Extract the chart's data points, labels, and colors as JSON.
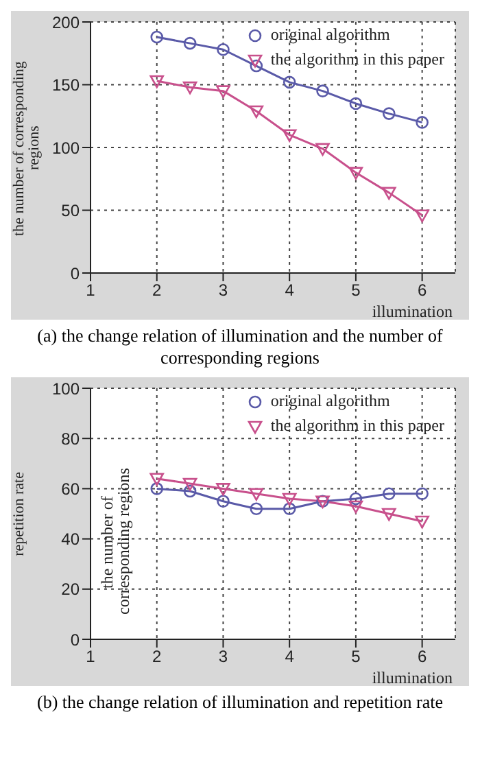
{
  "chart_data": [
    {
      "type": "line",
      "title": "(a) the change relation of illumination and the number of corresponding regions",
      "xlabel": "illumination",
      "ylabel": "the number of corresponding regions",
      "x": [
        2,
        2.5,
        3,
        3.5,
        4,
        4.5,
        5,
        5.5,
        6
      ],
      "series": [
        {
          "name": "original algorithm",
          "color": "#5a5aa8",
          "marker": "circle",
          "values": [
            188,
            183,
            178,
            165,
            152,
            145,
            135,
            127,
            120
          ]
        },
        {
          "name": "the algorithm in this paper",
          "color": "#c8508c",
          "marker": "triangle",
          "values": [
            153,
            148,
            145,
            129,
            110,
            99,
            80,
            64,
            46
          ]
        }
      ],
      "xlim": [
        1,
        6.5
      ],
      "xticks": [
        1,
        2,
        3,
        4,
        5,
        6
      ],
      "ylim": [
        0,
        200
      ],
      "yticks": [
        0,
        50,
        100,
        150,
        200
      ],
      "grid": true,
      "legend": "top right",
      "line_style": "solid"
    },
    {
      "type": "line",
      "title": "(b) the change relation of illumination and repetition rate",
      "xlabel": "illumination",
      "ylabel": "repetition rate",
      "annotations": [
        "the number of corresponding regions"
      ],
      "x": [
        2,
        2.5,
        3,
        3.5,
        4,
        4.5,
        5,
        5.5,
        6
      ],
      "series": [
        {
          "name": "original algorithm",
          "color": "#5a5aa8",
          "marker": "circle",
          "values": [
            60,
            59,
            55,
            52,
            52,
            55,
            56,
            58,
            58
          ]
        },
        {
          "name": "the algorithm in this paper",
          "color": "#c8508c",
          "marker": "triangle",
          "values": [
            64,
            62,
            60,
            58,
            56,
            55,
            53,
            50,
            47
          ]
        }
      ],
      "xlim": [
        1,
        6.5
      ],
      "xticks": [
        1,
        2,
        3,
        4,
        5,
        6
      ],
      "ylim": [
        0,
        100
      ],
      "yticks": [
        0,
        20,
        40,
        60,
        80,
        100
      ],
      "grid": true,
      "legend": "top right",
      "line_style": "solid"
    }
  ]
}
